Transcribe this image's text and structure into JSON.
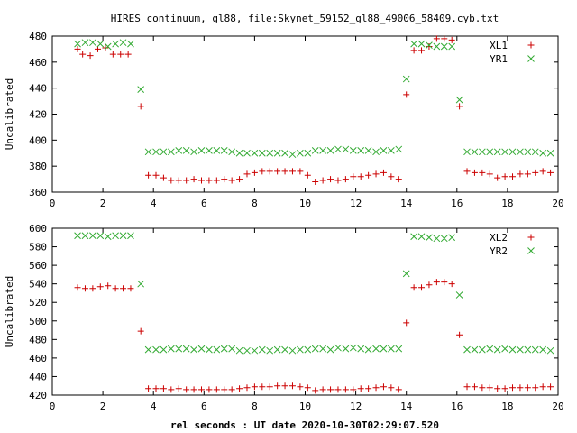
{
  "title": "HIRES continuum, gl88, file:Skynet_59152_gl88_49006_58409.cyb.txt",
  "xlabel": "rel seconds : UT date 2020-10-30T02:29:07.520",
  "colors": {
    "red": "#cc0000",
    "green": "#33aa33",
    "axis": "#000000"
  },
  "chart_data": [
    {
      "type": "scatter",
      "ylabel": "Uncalibrated",
      "xlim": [
        0,
        20
      ],
      "ylim": [
        360,
        480
      ],
      "xticks": [
        0,
        2,
        4,
        6,
        8,
        10,
        12,
        14,
        16,
        18,
        20
      ],
      "yticks": [
        360,
        380,
        400,
        420,
        440,
        460,
        480
      ],
      "legend_position": "top-right",
      "series": [
        {
          "name": "XL1",
          "marker": "plus",
          "color": "#cc0000",
          "points": [
            [
              1.0,
              470
            ],
            [
              1.2,
              466
            ],
            [
              1.5,
              465
            ],
            [
              1.8,
              470
            ],
            [
              2.1,
              471
            ],
            [
              2.4,
              466
            ],
            [
              2.7,
              466
            ],
            [
              3.0,
              466
            ],
            [
              3.5,
              426
            ],
            [
              3.8,
              373
            ],
            [
              4.1,
              373
            ],
            [
              4.4,
              371
            ],
            [
              4.7,
              369
            ],
            [
              5.0,
              369
            ],
            [
              5.3,
              369
            ],
            [
              5.6,
              370
            ],
            [
              5.9,
              369
            ],
            [
              6.2,
              369
            ],
            [
              6.5,
              369
            ],
            [
              6.8,
              370
            ],
            [
              7.1,
              369
            ],
            [
              7.4,
              370
            ],
            [
              7.7,
              374
            ],
            [
              8.0,
              375
            ],
            [
              8.3,
              376
            ],
            [
              8.6,
              376
            ],
            [
              8.9,
              376
            ],
            [
              9.2,
              376
            ],
            [
              9.5,
              376
            ],
            [
              9.8,
              376
            ],
            [
              10.1,
              373
            ],
            [
              10.4,
              368
            ],
            [
              10.7,
              369
            ],
            [
              11.0,
              370
            ],
            [
              11.3,
              369
            ],
            [
              11.6,
              370
            ],
            [
              11.9,
              372
            ],
            [
              12.2,
              372
            ],
            [
              12.5,
              373
            ],
            [
              12.8,
              374
            ],
            [
              13.1,
              375
            ],
            [
              13.4,
              372
            ],
            [
              13.7,
              370
            ],
            [
              14.0,
              435
            ],
            [
              14.3,
              469
            ],
            [
              14.6,
              469
            ],
            [
              14.9,
              472
            ],
            [
              15.2,
              478
            ],
            [
              15.5,
              478
            ],
            [
              15.8,
              477
            ],
            [
              16.1,
              426
            ],
            [
              16.4,
              376
            ],
            [
              16.7,
              375
            ],
            [
              17.0,
              375
            ],
            [
              17.3,
              374
            ],
            [
              17.6,
              371
            ],
            [
              17.9,
              372
            ],
            [
              18.2,
              372
            ],
            [
              18.5,
              374
            ],
            [
              18.8,
              374
            ],
            [
              19.1,
              375
            ],
            [
              19.4,
              376
            ],
            [
              19.7,
              375
            ]
          ]
        },
        {
          "name": "YR1",
          "marker": "cross",
          "color": "#33aa33",
          "points": [
            [
              1.0,
              474
            ],
            [
              1.3,
              475
            ],
            [
              1.6,
              475
            ],
            [
              1.9,
              474
            ],
            [
              2.2,
              472
            ],
            [
              2.5,
              474
            ],
            [
              2.8,
              475
            ],
            [
              3.1,
              474
            ],
            [
              3.5,
              439
            ],
            [
              3.8,
              391
            ],
            [
              4.1,
              391
            ],
            [
              4.4,
              391
            ],
            [
              4.7,
              391
            ],
            [
              5.0,
              392
            ],
            [
              5.3,
              392
            ],
            [
              5.6,
              391
            ],
            [
              5.9,
              392
            ],
            [
              6.2,
              392
            ],
            [
              6.5,
              392
            ],
            [
              6.8,
              392
            ],
            [
              7.1,
              391
            ],
            [
              7.4,
              390
            ],
            [
              7.7,
              390
            ],
            [
              8.0,
              390
            ],
            [
              8.3,
              390
            ],
            [
              8.6,
              390
            ],
            [
              8.9,
              390
            ],
            [
              9.2,
              390
            ],
            [
              9.5,
              389
            ],
            [
              9.8,
              390
            ],
            [
              10.1,
              390
            ],
            [
              10.4,
              392
            ],
            [
              10.7,
              392
            ],
            [
              11.0,
              392
            ],
            [
              11.3,
              393
            ],
            [
              11.6,
              393
            ],
            [
              11.9,
              392
            ],
            [
              12.2,
              392
            ],
            [
              12.5,
              392
            ],
            [
              12.8,
              391
            ],
            [
              13.1,
              392
            ],
            [
              13.4,
              392
            ],
            [
              13.7,
              393
            ],
            [
              14.0,
              447
            ],
            [
              14.3,
              474
            ],
            [
              14.6,
              474
            ],
            [
              14.9,
              473
            ],
            [
              15.2,
              472
            ],
            [
              15.5,
              472
            ],
            [
              15.8,
              472
            ],
            [
              16.1,
              431
            ],
            [
              16.4,
              391
            ],
            [
              16.7,
              391
            ],
            [
              17.0,
              391
            ],
            [
              17.3,
              391
            ],
            [
              17.6,
              391
            ],
            [
              17.9,
              391
            ],
            [
              18.2,
              391
            ],
            [
              18.5,
              391
            ],
            [
              18.8,
              391
            ],
            [
              19.1,
              391
            ],
            [
              19.4,
              390
            ],
            [
              19.7,
              390
            ]
          ]
        }
      ]
    },
    {
      "type": "scatter",
      "ylabel": "Uncalibrated",
      "xlim": [
        0,
        20
      ],
      "ylim": [
        420,
        600
      ],
      "xticks": [
        0,
        2,
        4,
        6,
        8,
        10,
        12,
        14,
        16,
        18,
        20
      ],
      "yticks": [
        420,
        440,
        460,
        480,
        500,
        520,
        540,
        560,
        580,
        600
      ],
      "legend_position": "top-right",
      "series": [
        {
          "name": "XL2",
          "marker": "plus",
          "color": "#cc0000",
          "points": [
            [
              1.0,
              536
            ],
            [
              1.3,
              535
            ],
            [
              1.6,
              535
            ],
            [
              1.9,
              537
            ],
            [
              2.2,
              538
            ],
            [
              2.5,
              535
            ],
            [
              2.8,
              535
            ],
            [
              3.1,
              535
            ],
            [
              3.5,
              489
            ],
            [
              3.8,
              427
            ],
            [
              4.1,
              427
            ],
            [
              4.4,
              427
            ],
            [
              4.7,
              426
            ],
            [
              5.0,
              427
            ],
            [
              5.3,
              426
            ],
            [
              5.6,
              426
            ],
            [
              5.9,
              426
            ],
            [
              6.2,
              426
            ],
            [
              6.5,
              426
            ],
            [
              6.8,
              426
            ],
            [
              7.1,
              426
            ],
            [
              7.4,
              427
            ],
            [
              7.7,
              428
            ],
            [
              8.0,
              429
            ],
            [
              8.3,
              429
            ],
            [
              8.6,
              429
            ],
            [
              8.9,
              430
            ],
            [
              9.2,
              430
            ],
            [
              9.5,
              430
            ],
            [
              9.8,
              429
            ],
            [
              10.1,
              428
            ],
            [
              10.4,
              425
            ],
            [
              10.7,
              426
            ],
            [
              11.0,
              426
            ],
            [
              11.3,
              426
            ],
            [
              11.6,
              426
            ],
            [
              11.9,
              426
            ],
            [
              12.2,
              427
            ],
            [
              12.5,
              427
            ],
            [
              12.8,
              428
            ],
            [
              13.1,
              429
            ],
            [
              13.4,
              428
            ],
            [
              13.7,
              426
            ],
            [
              14.0,
              498
            ],
            [
              14.3,
              536
            ],
            [
              14.6,
              536
            ],
            [
              14.9,
              539
            ],
            [
              15.2,
              542
            ],
            [
              15.5,
              542
            ],
            [
              15.8,
              540
            ],
            [
              16.1,
              485
            ],
            [
              16.4,
              429
            ],
            [
              16.7,
              429
            ],
            [
              17.0,
              428
            ],
            [
              17.3,
              428
            ],
            [
              17.6,
              427
            ],
            [
              17.9,
              427
            ],
            [
              18.2,
              428
            ],
            [
              18.5,
              428
            ],
            [
              18.8,
              428
            ],
            [
              19.1,
              428
            ],
            [
              19.4,
              429
            ],
            [
              19.7,
              429
            ]
          ]
        },
        {
          "name": "YR2",
          "marker": "cross",
          "color": "#33aa33",
          "points": [
            [
              1.0,
              592
            ],
            [
              1.3,
              592
            ],
            [
              1.6,
              592
            ],
            [
              1.9,
              592
            ],
            [
              2.2,
              591
            ],
            [
              2.5,
              592
            ],
            [
              2.8,
              592
            ],
            [
              3.1,
              592
            ],
            [
              3.5,
              540
            ],
            [
              3.8,
              469
            ],
            [
              4.1,
              469
            ],
            [
              4.4,
              469
            ],
            [
              4.7,
              470
            ],
            [
              5.0,
              470
            ],
            [
              5.3,
              470
            ],
            [
              5.6,
              469
            ],
            [
              5.9,
              470
            ],
            [
              6.2,
              469
            ],
            [
              6.5,
              469
            ],
            [
              6.8,
              470
            ],
            [
              7.1,
              470
            ],
            [
              7.4,
              468
            ],
            [
              7.7,
              468
            ],
            [
              8.0,
              468
            ],
            [
              8.3,
              469
            ],
            [
              8.6,
              468
            ],
            [
              8.9,
              469
            ],
            [
              9.2,
              469
            ],
            [
              9.5,
              468
            ],
            [
              9.8,
              469
            ],
            [
              10.1,
              469
            ],
            [
              10.4,
              470
            ],
            [
              10.7,
              470
            ],
            [
              11.0,
              469
            ],
            [
              11.3,
              471
            ],
            [
              11.6,
              470
            ],
            [
              11.9,
              471
            ],
            [
              12.2,
              470
            ],
            [
              12.5,
              469
            ],
            [
              12.8,
              470
            ],
            [
              13.1,
              470
            ],
            [
              13.4,
              470
            ],
            [
              13.7,
              470
            ],
            [
              14.0,
              551
            ],
            [
              14.3,
              591
            ],
            [
              14.6,
              591
            ],
            [
              14.9,
              590
            ],
            [
              15.2,
              589
            ],
            [
              15.5,
              589
            ],
            [
              15.8,
              590
            ],
            [
              16.1,
              528
            ],
            [
              16.4,
              469
            ],
            [
              16.7,
              469
            ],
            [
              17.0,
              469
            ],
            [
              17.3,
              470
            ],
            [
              17.6,
              469
            ],
            [
              17.9,
              470
            ],
            [
              18.2,
              469
            ],
            [
              18.5,
              469
            ],
            [
              18.8,
              469
            ],
            [
              19.1,
              469
            ],
            [
              19.4,
              469
            ],
            [
              19.7,
              468
            ]
          ]
        }
      ]
    }
  ]
}
